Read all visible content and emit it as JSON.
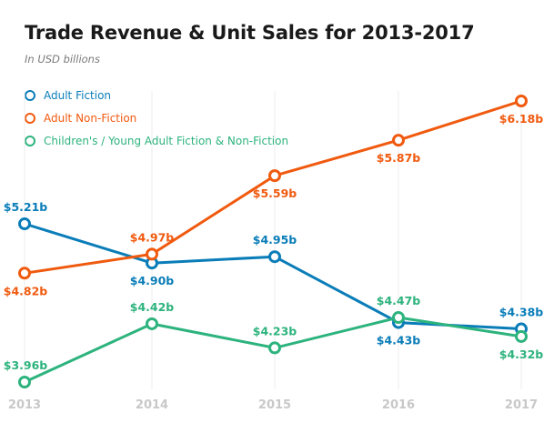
{
  "chart_data": {
    "type": "line",
    "title": "Trade Revenue & Unit Sales for 2013-2017",
    "subtitle": "In USD billions",
    "xlabel": "",
    "ylabel": "",
    "x": [
      "2013",
      "2014",
      "2015",
      "2016",
      "2017"
    ],
    "legend_placement": "top-left",
    "grid": true,
    "series": [
      {
        "name": "Adult Fiction",
        "color": "#0a7db8",
        "values": [
          5.21,
          4.9,
          4.95,
          4.43,
          4.38
        ],
        "labels": [
          "$5.21b",
          "$4.90b",
          "$4.95b",
          "$4.43b",
          "$4.38b"
        ]
      },
      {
        "name": "Adult Non-Fiction",
        "color": "#f05a0f",
        "values": [
          4.82,
          4.97,
          5.59,
          5.87,
          6.18
        ],
        "labels": [
          "$4.82b",
          "$4.97b",
          "$5.59b",
          "$5.87b",
          "$6.18b"
        ]
      },
      {
        "name": "Children's / Young Adult Fiction & Non-Fiction",
        "color": "#2db37d",
        "values": [
          3.96,
          4.42,
          4.23,
          4.47,
          4.32
        ],
        "labels": [
          "$3.96b",
          "$4.42b",
          "$4.23b",
          "$4.47b",
          "$4.32b"
        ]
      }
    ]
  }
}
